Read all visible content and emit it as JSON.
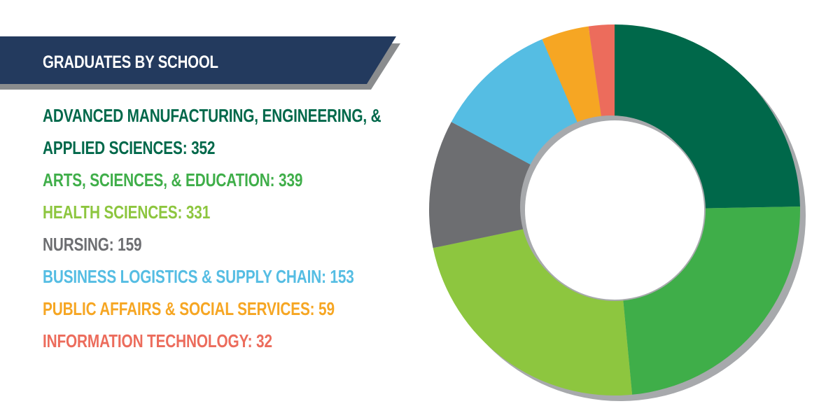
{
  "title": "GRADUATES BY SCHOOL",
  "colors": {
    "banner": "#233a5e",
    "banner_shadow": "#8a8c8e",
    "ring_shadow": "#a7a9ac"
  },
  "chart_data": {
    "type": "pie",
    "donut": true,
    "title": "GRADUATES BY SCHOOL",
    "categories": [
      "ADVANCED MANUFACTURING, ENGINEERING, & APPLIED SCIENCES",
      "ARTS, SCIENCES, & EDUCATION",
      "HEALTH SCIENCES",
      "NURSING",
      "BUSINESS LOGISTICS & SUPPLY CHAIN",
      "PUBLIC AFFAIRS & SOCIAL SERVICES",
      "INFORMATION TECHNOLOGY"
    ],
    "values": [
      352,
      339,
      331,
      159,
      153,
      59,
      32
    ],
    "colors": [
      "#00684a",
      "#3fae49",
      "#8dc63f",
      "#6d6e71",
      "#55bde3",
      "#f6a623",
      "#ec6c5c"
    ],
    "legend_lines": [
      {
        "text": "ADVANCED MANUFACTURING, ENGINEERING, &",
        "slice": 0
      },
      {
        "text": "APPLIED SCIENCES: 352",
        "slice": 0
      },
      {
        "text": "ARTS, SCIENCES, & EDUCATION: 339",
        "slice": 1
      },
      {
        "text": "HEALTH SCIENCES: 331",
        "slice": 2
      },
      {
        "text": "NURSING: 159",
        "slice": 3
      },
      {
        "text": "BUSINESS LOGISTICS & SUPPLY CHAIN: 153",
        "slice": 4
      },
      {
        "text": "PUBLIC AFFAIRS & SOCIAL SERVICES: 59",
        "slice": 5
      },
      {
        "text": "INFORMATION TECHNOLOGY: 32",
        "slice": 6
      }
    ]
  }
}
